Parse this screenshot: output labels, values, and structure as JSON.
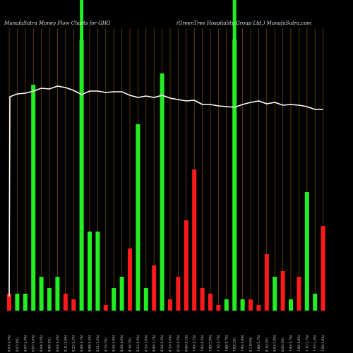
{
  "header": {
    "left_title": "MunafaSutra  Money Flow  Charts for GHG",
    "right_title": "(GreenTree   Hospitality Group Ltd.) MunafaSutra.com"
  },
  "colors": {
    "background": "#000000",
    "grid": "#9a5a00",
    "up": "#22ee22",
    "down": "#ff1a1a",
    "line": "#ffffff",
    "text": "#e0e0e0"
  },
  "chart_data": {
    "type": "bar",
    "title": "MunafaSutra  Money Flow  Charts for GHG",
    "subtitle": "(GreenTree   Hospitality Group Ltd.) MunafaSutra.com",
    "x_labels": [
      "8.03 (0.5%)",
      "8.07 (0%)",
      "8.07 (1.4%)",
      "8.07 (0.6%)",
      "8.09 (0.6%)",
      "8.09 (2%)",
      "8.03 (0.4%)",
      "8.11 (2.6%)",
      "8.15 (1.2%)",
      "8.08 (0.7%)",
      "8.08 (0.3%)",
      "8.11 (1.5%)",
      "8.13 (1%)",
      "8.14 (1.6%)",
      "8.19 (0.6%)",
      "8.14 (2%)",
      "8.12 (0.5%)",
      "8.15 (1.6%)",
      "8.06 (1.1%)",
      "8.14 (0.2%)",
      "8.10 (0.4%)",
      "8.14 (0.2%)",
      "8.06 (0.1%)",
      "7.90 (2.2%)",
      "7.92 (0.3%)",
      "7.90 (1.9%)",
      "7.76 (0.7%)",
      "7.68 (0.7%)",
      "7.65 (1%)",
      "7.95 (0.8%)",
      "8.1 (0.5%)",
      "7.88 (2.7%)",
      "8.15 (2%)",
      "8.00 (1.9%)",
      "8.05 (2%)",
      "7.90 (0.7%)",
      "7.85 (0.8%)",
      "7.72 (1.7%)",
      "7.70 (1.4%)",
      "7.56 (1.9%)"
    ],
    "series": [
      {
        "volume": [
          3,
          3,
          3,
          40,
          6,
          4,
          6,
          3,
          2,
          48,
          14,
          14,
          1,
          4,
          6,
          11,
          33,
          4,
          8,
          42,
          2,
          6,
          16,
          25,
          4,
          3,
          1,
          2,
          48,
          2,
          2,
          1,
          10,
          6,
          7,
          2,
          6,
          21,
          3,
          15
        ],
        "direction": [
          "down",
          "up",
          "up",
          "up",
          "up",
          "up",
          "up",
          "down",
          "down",
          "up",
          "up",
          "up",
          "down",
          "up",
          "up",
          "down",
          "up",
          "up",
          "down",
          "up",
          "down",
          "down",
          "down",
          "down",
          "down",
          "down",
          "down",
          "up",
          "up",
          "up",
          "down",
          "down",
          "down",
          "up",
          "down",
          "up",
          "down",
          "up",
          "up",
          "down"
        ],
        "price_line": [
          8.03,
          8.07,
          8.08,
          8.11,
          8.15,
          8.14,
          8.18,
          8.16,
          8.12,
          8.06,
          8.11,
          8.11,
          8.09,
          8.1,
          8.1,
          8.05,
          8.02,
          8.04,
          8.02,
          8.05,
          8.01,
          7.99,
          7.97,
          7.98,
          7.92,
          7.92,
          7.9,
          7.89,
          7.88,
          7.92,
          7.95,
          7.97,
          7.93,
          7.95,
          7.91,
          7.92,
          7.91,
          7.89,
          7.85,
          7.85
        ]
      }
    ],
    "highlighted_columns": [
      9,
      28
    ],
    "price_line_start": 5.2,
    "volume_range": [
      0,
      50
    ],
    "price_range": [
      5.0,
      8.3
    ],
    "grid": true
  }
}
